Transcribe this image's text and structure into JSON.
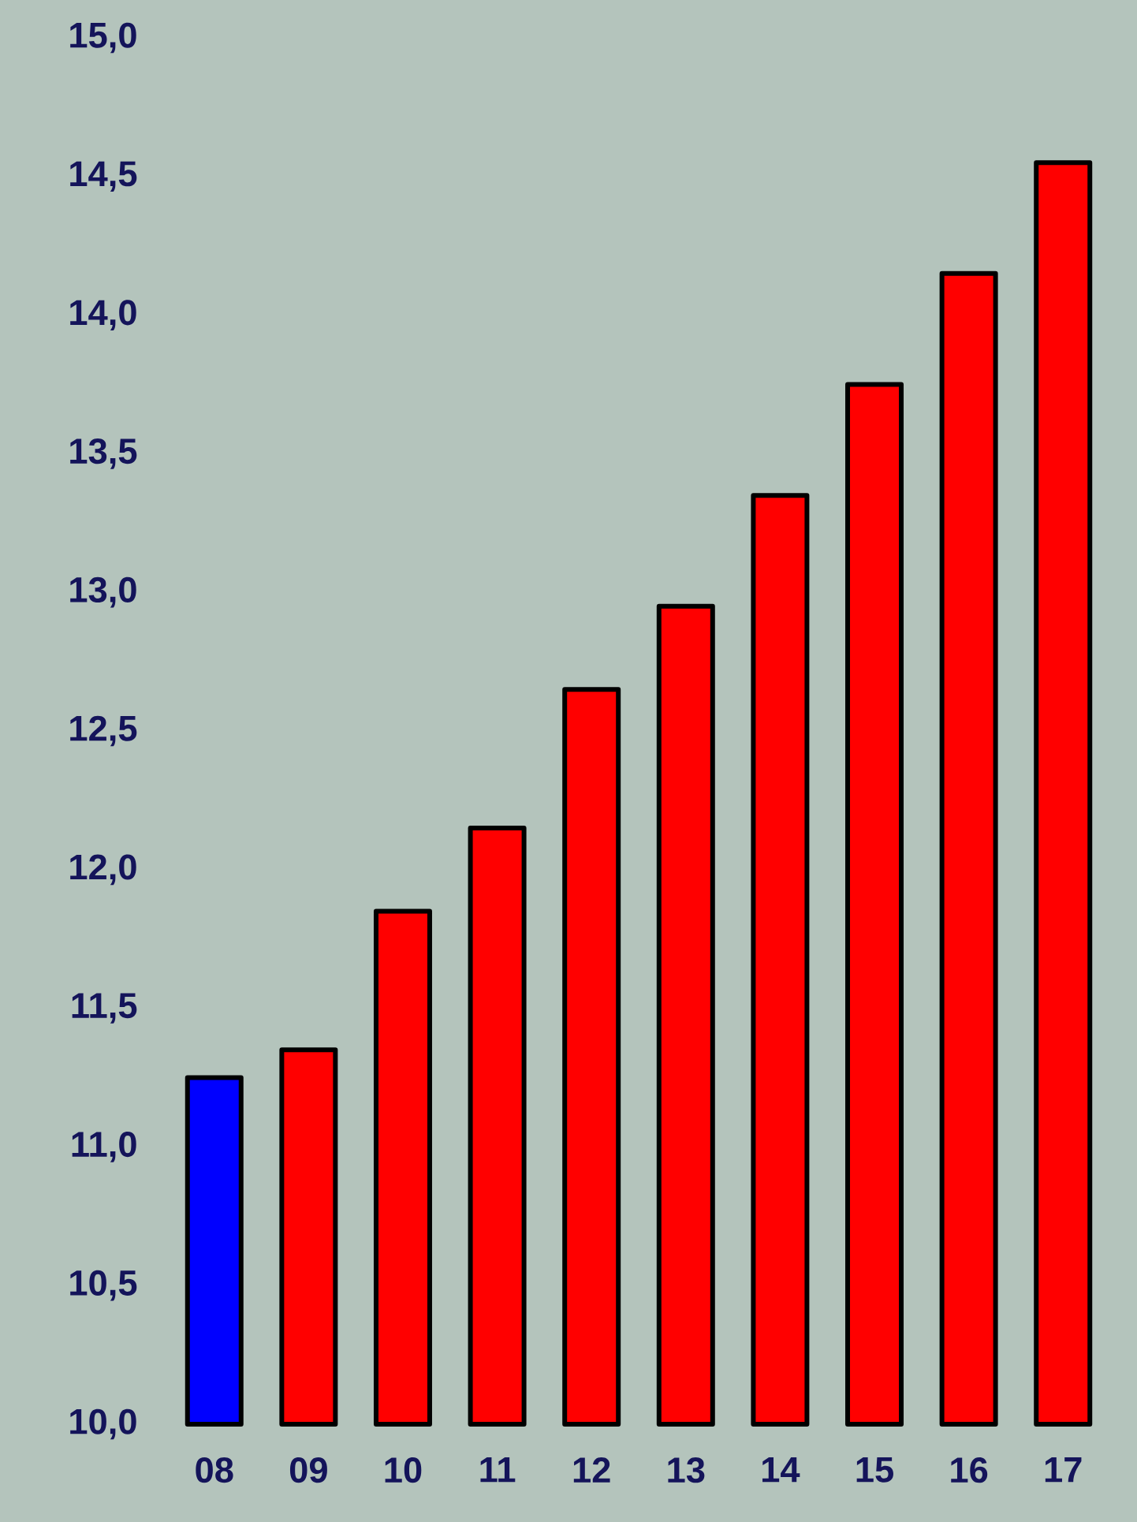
{
  "chart_data": {
    "type": "bar",
    "categories": [
      "08",
      "09",
      "10",
      "11",
      "12",
      "13",
      "14",
      "15",
      "16",
      "17"
    ],
    "values": [
      11.25,
      11.35,
      11.85,
      12.15,
      12.65,
      12.95,
      13.35,
      13.75,
      14.15,
      14.55
    ],
    "colors": [
      "#0000ff",
      "#ff0000",
      "#ff0000",
      "#ff0000",
      "#ff0000",
      "#ff0000",
      "#ff0000",
      "#ff0000",
      "#ff0000",
      "#ff0000"
    ],
    "ylim": [
      10,
      15
    ],
    "yticks": [
      {
        "value": 10,
        "label": "10,0"
      },
      {
        "value": 10.5,
        "label": "10,5"
      },
      {
        "value": 11,
        "label": "11,0"
      },
      {
        "value": 11.5,
        "label": "11,5"
      },
      {
        "value": 12,
        "label": "12,0"
      },
      {
        "value": 12.5,
        "label": "12,5"
      },
      {
        "value": 13,
        "label": "13,0"
      },
      {
        "value": 13.5,
        "label": "13,5"
      },
      {
        "value": 14,
        "label": "14,0"
      },
      {
        "value": 14.5,
        "label": "14,5"
      },
      {
        "value": 15,
        "label": "15,0"
      }
    ]
  }
}
